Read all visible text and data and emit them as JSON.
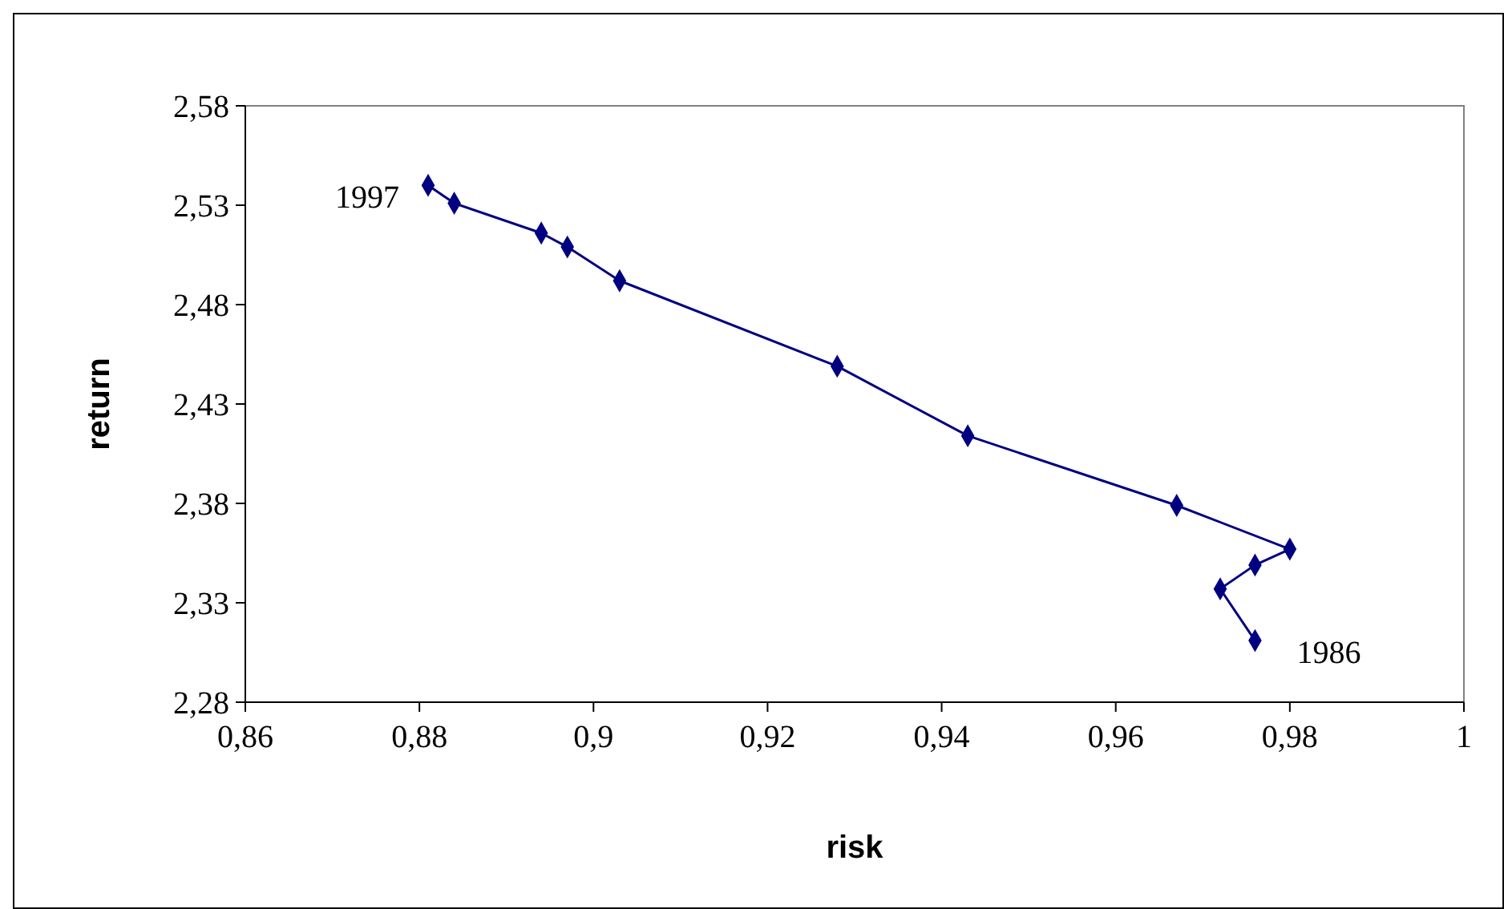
{
  "chart_data": {
    "type": "line",
    "xlabel": "risk",
    "ylabel": "return",
    "x": [
      0.976,
      0.972,
      0.976,
      0.98,
      0.967,
      0.943,
      0.928,
      0.903,
      0.897,
      0.894,
      0.884,
      0.881
    ],
    "series": [
      {
        "color": "#000080",
        "values": [
          2.311,
          2.337,
          2.349,
          2.357,
          2.379,
          2.414,
          2.449,
          2.492,
          2.509,
          2.516,
          2.531,
          2.54
        ]
      }
    ],
    "xlim": [
      0.86,
      1
    ],
    "xticks": [
      {
        "value": 0.86,
        "label": "0,86"
      },
      {
        "value": 0.88,
        "label": "0,88"
      },
      {
        "value": 0.9,
        "label": "0,9"
      },
      {
        "value": 0.92,
        "label": "0,92"
      },
      {
        "value": 0.94,
        "label": "0,94"
      },
      {
        "value": 0.96,
        "label": "0,96"
      },
      {
        "value": 0.98,
        "label": "0,98"
      },
      1
    ],
    "ylim": [
      2.28,
      2.58
    ],
    "yticks": [
      {
        "value": 2.28,
        "label": "2,28"
      },
      {
        "value": 2.33,
        "label": "2,33"
      },
      {
        "value": 2.38,
        "label": "2,38"
      },
      {
        "value": 2.43,
        "label": "2,43"
      },
      {
        "value": 2.48,
        "label": "2,48"
      },
      {
        "value": 2.53,
        "label": "2,53"
      },
      {
        "value": 2.58,
        "label": "2,58"
      }
    ],
    "annotations": [
      {
        "text": "1986",
        "x": 0.976,
        "y": 2.311
      },
      {
        "text": "1997",
        "x": 0.881,
        "y": 2.54
      }
    ],
    "marker": "diamond",
    "line_style": "solid"
  }
}
